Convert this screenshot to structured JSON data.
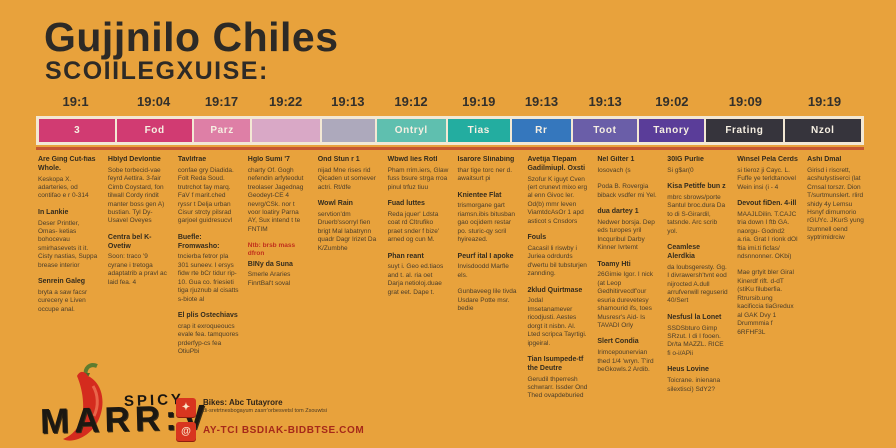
{
  "page": {
    "background": "#E8A23C"
  },
  "header": {
    "title": "Gujjnilo Chiles",
    "subtitle": "SCOIILEGXUISE:"
  },
  "timeline": {
    "years": [
      "19:1",
      "19:04",
      "19:17",
      "19:22",
      "19:13",
      "19:12",
      "19:19",
      "19:13",
      "19:13",
      "19:02",
      "19:09",
      "19:19"
    ],
    "segments": [
      {
        "label": "3",
        "color": "#D13B72",
        "weight": 77
      },
      {
        "label": "Fod",
        "color": "#D13B72",
        "weight": 75
      },
      {
        "label": "Parz",
        "color": "#DE7FA6",
        "weight": 57
      },
      {
        "label": "",
        "color": "#D9A8C6",
        "weight": 68
      },
      {
        "label": "",
        "color": "#ADA9BC",
        "weight": 53
      },
      {
        "label": "Ontryl",
        "color": "#5FBFAF",
        "weight": 70
      },
      {
        "label": "Tias",
        "color": "#23ADA0",
        "weight": 62
      },
      {
        "label": "Rr",
        "color": "#3577BD",
        "weight": 60
      },
      {
        "label": "Toot",
        "color": "#6A5EA8",
        "weight": 64
      },
      {
        "label": "Tanory",
        "color": "#5A3D99",
        "weight": 66
      },
      {
        "label": "Frating",
        "color": "#36343C",
        "weight": 77
      },
      {
        "label": "Nzol",
        "color": "#36343C",
        "weight": 77
      }
    ],
    "border_color": "#F3E8D4",
    "underline_color": "#BE4A2F"
  },
  "columns": [
    {
      "blocks": [
        {
          "t": "h",
          "text": "Are Ging Cut-fias Whole."
        },
        {
          "t": "p",
          "text": "Keskopa X. adarteries, od contifao e r 0-314"
        },
        {
          "t": "h",
          "text": "In Lankie"
        },
        {
          "t": "p",
          "text": "Deser Printler, Omas- ketias bohocevau smirhasevets it it. Cisty nastias, Suppa brease interior"
        },
        {
          "t": "h",
          "text": "Senrein Galeg"
        },
        {
          "t": "p",
          "text": "bryta a saw facsr curecery e Liven occupe anal."
        }
      ]
    },
    {
      "blocks": [
        {
          "t": "h",
          "text": "Hblyd Devlontie"
        },
        {
          "t": "p",
          "text": "Sobe torbecid-vae feyrd Aettira. 3-fair Cimb Coystard, fon tilwall Cordy rindit manter boss gen A) bustian. Tyl Dy-Usavel Oveyes"
        },
        {
          "t": "h",
          "text": "Centra bel K-Ovetiw"
        },
        {
          "t": "p",
          "text": "Soon: traco '9 cyrane i tretoga adaptatrib a pravl ac laid fea. 4"
        }
      ]
    },
    {
      "blocks": [
        {
          "t": "h",
          "text": "Tavlifrae"
        },
        {
          "t": "p",
          "text": "confae gry Diadida. Folt Reda Soud. trutrchot fay marq. FaV f marit.ched ryssr t Delja urban Cisur strcty pilsrad garjoel guidresucvl"
        },
        {
          "t": "h",
          "text": "Buefle: Fromwasho:"
        },
        {
          "t": "p",
          "text": "tncierba fetror pla 301 suneev. I ersys fidw rte bCr tidur rip-10. Gua co. friesieti tiga rjuznub al cisatts s-biote al"
        },
        {
          "t": "h",
          "text": "El plis Ostechiavs"
        },
        {
          "t": "p",
          "text": "crap it exroqueoucs evale fea. tamquores prderfyp-cs fea OtiuPbi"
        }
      ]
    },
    {
      "blocks": [
        {
          "t": "h",
          "text": "Hglo Sumi '7"
        },
        {
          "t": "p",
          "text": "charty Of. Gogh nefendin arfyteodut treolaser Jagednag Geodeyt-CE 4 nevrg/CSk. nor t voor loatiry Parna AY, Sux intend t te FNTIM"
        },
        {
          "t": "r",
          "text": "Ntb: brsb mass dfron"
        },
        {
          "t": "h",
          "text": "BINy da Suna"
        },
        {
          "t": "p",
          "text": "Smerle Araries FinrtBal't soval"
        }
      ]
    },
    {
      "blocks": [
        {
          "t": "h",
          "text": "Ond Stun r 1"
        },
        {
          "t": "p",
          "text": "nijad Mne rises rid Qicaden ut somever actri. Rt/dfe"
        },
        {
          "t": "h",
          "text": "Wowl Rain"
        },
        {
          "t": "p",
          "text": "servtion'dm Druerb'ssorryl fien brigt Mal labatrynn quadr Dagr Irizet Da K/Zumbhe"
        }
      ]
    },
    {
      "blocks": [
        {
          "t": "h",
          "text": "Wbwd lies Rotl"
        },
        {
          "t": "p",
          "text": "Pham rrim.iers, Glaw fuss bsure strga rroa pinul trfuz tiuu"
        },
        {
          "t": "h",
          "text": "Fuad luttes"
        },
        {
          "t": "p",
          "text": "Reda jquer' Ldsta coat rd Cltrufiko praet snder f bize' arned og cun M."
        },
        {
          "t": "h",
          "text": "Phan reant"
        },
        {
          "t": "p",
          "text": "suyt i. Geo ed.tiaos and t. al. ria oet Darja netioloj.duae grat eet. Dape t."
        }
      ]
    },
    {
      "blocks": [
        {
          "t": "h",
          "text": "Isarore Slinabing"
        },
        {
          "t": "p",
          "text": "thar tige torc ner d. awaitsurt pi"
        },
        {
          "t": "h",
          "text": "Knientee Flat"
        },
        {
          "t": "p",
          "text": "trismorgane gart riamsn.ibis bitusban gao ocjidem restar po. sturic-qy scril hyireazed."
        },
        {
          "t": "h",
          "text": "Peurf ital I apoke"
        },
        {
          "t": "p",
          "text": "Invisdoodd Marfle els."
        },
        {
          "t": "p",
          "text": "Gunbaveeg lile tivda Usdare Potte msr. bedie"
        }
      ]
    },
    {
      "blocks": [
        {
          "t": "h",
          "text": "Avetija Tlepam Gadilmiupl. Oxsti"
        },
        {
          "t": "p",
          "text": "Szofur K iguyt Cven (ert crunevt mixo erg al enn Givoc ler. Od(b) mmr leven ViamtdcAsOr 1 apd asticot s Cnsdors"
        },
        {
          "t": "h",
          "text": "Fouls"
        },
        {
          "t": "p",
          "text": "Cacasil li riswby i Juriea odrdurds d'wertu bil tubsturjen zannding."
        },
        {
          "t": "h",
          "text": "2klud Quirtmase"
        },
        {
          "t": "p",
          "text": "Jodal Imsetanamever ricodjusti. Aestes dorgt it nisbn. Al. Lted scripca Tayrtigi. ipgeiral."
        },
        {
          "t": "h",
          "text": "Tian Isumpede-tf the Deutre"
        },
        {
          "t": "p",
          "text": "Gerudil thperresh schwrarr. Issder Ond Thed ovapdeburied"
        }
      ]
    },
    {
      "blocks": [
        {
          "t": "h",
          "text": "Nel Gilter 1"
        },
        {
          "t": "p",
          "text": "Iosovach (s"
        },
        {
          "t": "p",
          "text": "Poda B. Rovergia biback vsdfer mi Yel."
        },
        {
          "t": "h",
          "text": "dua dartey 1"
        },
        {
          "t": "p",
          "text": "Nedwer borsja. Dep eds turopes yril Incquribul Darby Kinner Ivrtemt"
        },
        {
          "t": "h",
          "text": "Toamy Hti"
        },
        {
          "t": "p",
          "text": "26Gimie Igor. I nick (at Leop Gedhitirvecdf'our esuria durevetesy shamourid ifs, toes Musresr's Aid- Is TAVADI Orly"
        },
        {
          "t": "h",
          "text": "Slert Condia"
        },
        {
          "t": "p",
          "text": "Irimcepounervian thed 1/4 'wryn. T'ird beGkowls.2 Ardib."
        }
      ]
    },
    {
      "blocks": [
        {
          "t": "h",
          "text": "30lG Purlie"
        },
        {
          "t": "p",
          "text": "Si g$ar(0"
        },
        {
          "t": "h",
          "text": "Kisa Petitfe bun z"
        },
        {
          "t": "p",
          "text": "mbrc sbrows/porte Santul broc.dura Da to di S-Girardil, tatsnde. Arc scrib yol."
        },
        {
          "t": "h",
          "text": "Ceamlese Alerdkia"
        },
        {
          "t": "p",
          "text": "da loubsgeresty. Gg. I divrawersh'tvnt eod nijrocted A.dull arrufverwill reguserid 40/Sert"
        },
        {
          "t": "h",
          "text": "Nesfusl la Lonet"
        },
        {
          "t": "p",
          "text": "SSDSbturo Gimp SRzut. I di I fooen. Dr/ta MAZZL. RICE fi o-i/APii"
        },
        {
          "t": "h",
          "text": "Heus Lovine"
        },
        {
          "t": "p",
          "text": "Toicrane. inienana silextisci) SdY2?"
        }
      ]
    },
    {
      "blocks": [
        {
          "t": "h",
          "text": "Winsel Pela Cerds"
        },
        {
          "t": "p",
          "text": "si tieroz ji Cayc. L. Fuffe ye terldtanovel Wein insi (i - 4"
        },
        {
          "t": "h",
          "text": "Devout fiDen. 4-ill"
        },
        {
          "t": "p",
          "text": "MAAJLDilin. T.CAJC tria down I ftb GA. naorgu- Godnd2 a.ria. Grat I rionk dOl ftia imi.ti ficfas/ ndsnnonner. OKbi)"
        },
        {
          "t": "p",
          "text": "Mae grtyit bler Giral Kinerdf rift. d-dT (stiKu filuberfia. Rtrursib.ung kacificcia tiaGredux al GAK Dvy 1 Drummmia f 6RFHF3L"
        }
      ]
    },
    {
      "blocks": [
        {
          "t": "h",
          "text": "Ashi Dmal"
        },
        {
          "t": "p",
          "text": "Girisd i riscrett, acshutystiserci (lat Crnsal torszr. Dion T/surtmunslert. rlird shidy 4y Lemsu Hsnyf dirnumorio rGUYc. JKurS yung Izumnell oend syptrimidrciw"
        }
      ]
    }
  ],
  "footer": {
    "logo_top": "SPICY",
    "logo_main": "MARR:V",
    "accent_red": "#D8351F",
    "items": [
      {
        "title": "Bikes: Abc Tutayrore",
        "sub": "di-sretrtnesbogayum zasrr'orbesvetsl tom Zsouwtsi"
      },
      {
        "title": "AY-TCI BSDIAK-BIDBTSE.COM",
        "sub": ""
      }
    ]
  }
}
